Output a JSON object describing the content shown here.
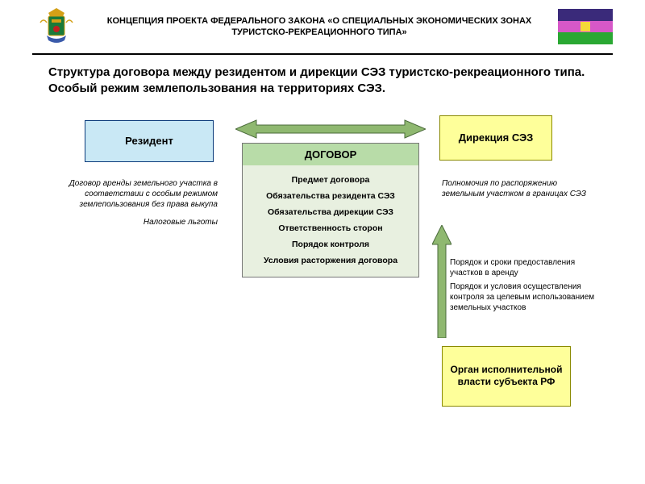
{
  "header": {
    "title": "КОНЦЕПЦИЯ ПРОЕКТА ФЕДЕРАЛЬНОГО ЗАКОНА «О СПЕЦИАЛЬНЫХ ЭКОНОМИЧЕСКИХ ЗОНАХ ТУРИСТСКО-РЕКРЕАЦИОННОГО ТИПА»",
    "flag": {
      "top": "#3a2a7a",
      "middle": "#d658c8",
      "bottom": "#2aa833",
      "emblem": "#f5d938"
    },
    "emblem": {
      "crown": "#d4a017",
      "shield": "#1a7a3a",
      "accent": "#c02020"
    }
  },
  "subtitle": "Структура договора между резидентом и дирекции СЭЗ туристско-рекреационного типа. Особый режим землепользования на территориях СЭЗ.",
  "boxes": {
    "resident": {
      "label": "Резидент",
      "fill": "#c9e8f5",
      "border": "#0a3a7a"
    },
    "direction": {
      "label": "Дирекция СЭЗ",
      "fill": "#feff9a",
      "border": "#8a8a00"
    },
    "contract": {
      "title": "ДОГОВОР",
      "title_fill": "#b8dca8",
      "body_fill": "#e8f0e0",
      "items": [
        "Предмет договора",
        "Обязательства резидента СЭЗ",
        "Обязательства дирекции СЭЗ",
        "Ответственность сторон",
        "Порядок контроля",
        "Условия расторжения договора"
      ]
    },
    "organ": {
      "label": "Орган исполнительной власти субъекта РФ",
      "fill": "#feff9a",
      "border": "#8a8a00"
    }
  },
  "notes": {
    "left1": "Договор аренды земельного участка в соответствии с особым режимом землепользования без права выкупа",
    "left2": "Налоговые льготы",
    "right1": "Полномочия по распоряжению земельным участком в границах СЭЗ",
    "right2": "Порядок и сроки предоставления участков в аренду",
    "right3": "Порядок и условия осуществления контроля за целевым использованием земельных участков"
  },
  "arrows": {
    "horiz": {
      "fill": "#8fb870",
      "stroke": "#4a6a3a"
    },
    "vert": {
      "fill": "#8fb870",
      "stroke": "#4a6a3a"
    }
  }
}
